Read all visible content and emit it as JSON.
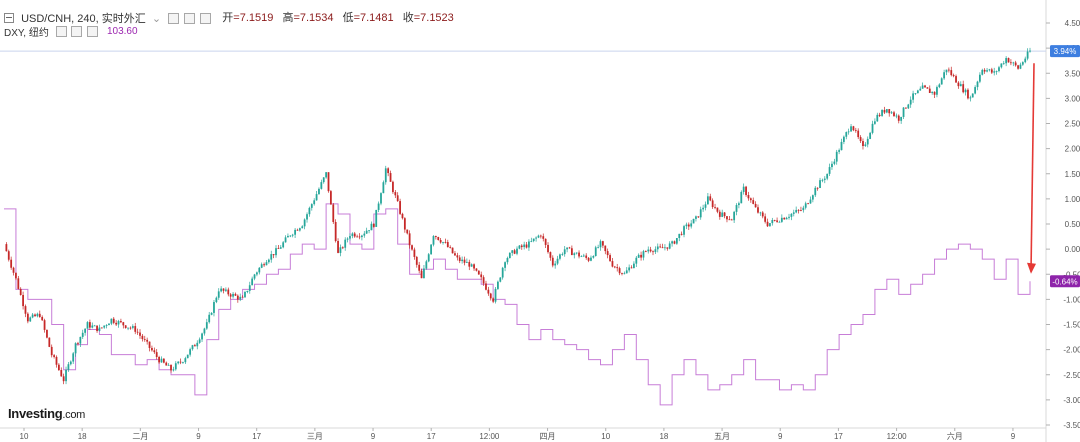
{
  "header": {
    "symbol_line": "USD/CNH, 240, 实时外汇",
    "ohlc": [
      {
        "label": "开",
        "value": "=7.1519"
      },
      {
        "label": "高",
        "value": "=7.1534"
      },
      {
        "label": "低",
        "value": "=7.1481"
      },
      {
        "label": "收",
        "value": "=7.1523"
      }
    ],
    "dxy_label": "DXY, 纽约",
    "dxy_value": "103.60"
  },
  "brand": {
    "name": "Investing",
    "suffix": ".com"
  },
  "colors": {
    "up": "#26a69a",
    "down": "#c62828",
    "dxy_line": "#c77dd7",
    "badge_usdcnh": "#3d7ee0",
    "badge_dxy": "#8e24aa",
    "arrow": "#e53935"
  },
  "chart_data": {
    "type": "line",
    "xlabel": "",
    "ylabel": "",
    "y_unit": "%",
    "ylim": [
      -3.5,
      4.5
    ],
    "yticks": [
      "4.50%",
      "4.00%",
      "3.50%",
      "3.00%",
      "2.50%",
      "2.00%",
      "1.50%",
      "1.00%",
      "0.50%",
      "0.00%",
      "-0.50%",
      "-1.00%",
      "-1.50%",
      "-2.00%",
      "-2.50%",
      "-3.00%",
      "-3.50%"
    ],
    "xticks": [
      "10",
      "18",
      "二月",
      "9",
      "17",
      "三月",
      "9",
      "17",
      "12:00",
      "四月",
      "10",
      "18",
      "五月",
      "9",
      "17",
      "12:00",
      "六月",
      "9"
    ],
    "grid": false,
    "last_values": {
      "usdcnh": "3.94%",
      "dxy": "-0.64%"
    },
    "series": [
      {
        "style": "candles",
        "points": [
          [
            0,
            0.1
          ],
          [
            1,
            -0.6
          ],
          [
            2,
            -1.4
          ],
          [
            3,
            -1.3
          ],
          [
            4,
            -2.1
          ],
          [
            5,
            -2.6
          ],
          [
            6,
            -1.9
          ],
          [
            7,
            -1.5
          ],
          [
            8,
            -1.6
          ],
          [
            9,
            -1.4
          ],
          [
            10,
            -1.5
          ],
          [
            11,
            -1.6
          ],
          [
            12,
            -1.9
          ],
          [
            13,
            -2.2
          ],
          [
            14,
            -2.4
          ],
          [
            15,
            -2.2
          ],
          [
            16,
            -1.9
          ],
          [
            17,
            -1.5
          ],
          [
            18,
            -0.8
          ],
          [
            19,
            -0.9
          ],
          [
            20,
            -1.0
          ],
          [
            21,
            -0.5
          ],
          [
            22,
            -0.2
          ],
          [
            23,
            0.0
          ],
          [
            24,
            0.3
          ],
          [
            25,
            0.5
          ],
          [
            26,
            1.0
          ],
          [
            27,
            1.5
          ],
          [
            28,
            -0.1
          ],
          [
            29,
            0.3
          ],
          [
            30,
            0.3
          ],
          [
            31,
            0.5
          ],
          [
            32,
            1.6
          ],
          [
            33,
            0.9
          ],
          [
            34,
            0.1
          ],
          [
            35,
            -0.6
          ],
          [
            36,
            0.3
          ],
          [
            37,
            0.1
          ],
          [
            38,
            -0.2
          ],
          [
            39,
            -0.3
          ],
          [
            40,
            -0.6
          ],
          [
            41,
            -1.0
          ],
          [
            42,
            -0.2
          ],
          [
            43,
            0.0
          ],
          [
            44,
            0.1
          ],
          [
            45,
            0.3
          ],
          [
            46,
            -0.3
          ],
          [
            47,
            0.0
          ],
          [
            48,
            -0.1
          ],
          [
            49,
            -0.2
          ],
          [
            50,
            0.1
          ],
          [
            51,
            -0.3
          ],
          [
            52,
            -0.5
          ],
          [
            53,
            -0.2
          ],
          [
            54,
            0.0
          ],
          [
            55,
            0.0
          ],
          [
            56,
            0.1
          ],
          [
            57,
            0.4
          ],
          [
            58,
            0.6
          ],
          [
            59,
            1.0
          ],
          [
            60,
            0.7
          ],
          [
            61,
            0.6
          ],
          [
            62,
            1.2
          ],
          [
            63,
            0.8
          ],
          [
            64,
            0.5
          ],
          [
            65,
            0.6
          ],
          [
            66,
            0.7
          ],
          [
            67,
            0.8
          ],
          [
            68,
            1.2
          ],
          [
            69,
            1.5
          ],
          [
            70,
            2.0
          ],
          [
            71,
            2.5
          ],
          [
            72,
            2.0
          ],
          [
            73,
            2.6
          ],
          [
            74,
            2.8
          ],
          [
            75,
            2.6
          ],
          [
            76,
            3.0
          ],
          [
            77,
            3.2
          ],
          [
            78,
            3.1
          ],
          [
            79,
            3.6
          ],
          [
            80,
            3.3
          ],
          [
            81,
            3.0
          ],
          [
            82,
            3.6
          ],
          [
            83,
            3.5
          ],
          [
            84,
            3.8
          ],
          [
            85,
            3.6
          ],
          [
            86,
            3.94
          ]
        ]
      },
      {
        "name": "DXY",
        "style": "step",
        "points": [
          [
            0,
            0.8
          ],
          [
            1,
            -0.8
          ],
          [
            2,
            -1.0
          ],
          [
            3,
            -1.0
          ],
          [
            4,
            -1.5
          ],
          [
            5,
            -2.4
          ],
          [
            6,
            -1.9
          ],
          [
            7,
            -1.6
          ],
          [
            8,
            -1.7
          ],
          [
            9,
            -2.1
          ],
          [
            10,
            -2.1
          ],
          [
            11,
            -2.3
          ],
          [
            12,
            -2.2
          ],
          [
            13,
            -2.4
          ],
          [
            14,
            -2.5
          ],
          [
            15,
            -2.5
          ],
          [
            16,
            -2.9
          ],
          [
            17,
            -1.8
          ],
          [
            18,
            -1.2
          ],
          [
            19,
            -1.0
          ],
          [
            20,
            -0.8
          ],
          [
            21,
            -0.7
          ],
          [
            22,
            -0.5
          ],
          [
            23,
            -0.4
          ],
          [
            24,
            -0.1
          ],
          [
            25,
            0.1
          ],
          [
            26,
            0.0
          ],
          [
            27,
            0.9
          ],
          [
            28,
            0.7
          ],
          [
            29,
            0.1
          ],
          [
            30,
            0.0
          ],
          [
            31,
            0.7
          ],
          [
            32,
            0.8
          ],
          [
            33,
            0.1
          ],
          [
            34,
            -0.5
          ],
          [
            35,
            -0.4
          ],
          [
            36,
            -0.2
          ],
          [
            37,
            -0.4
          ],
          [
            38,
            -0.6
          ],
          [
            39,
            -0.6
          ],
          [
            40,
            -0.7
          ],
          [
            41,
            -1.0
          ],
          [
            42,
            -1.1
          ],
          [
            43,
            -1.5
          ],
          [
            44,
            -1.8
          ],
          [
            45,
            -1.6
          ],
          [
            46,
            -1.8
          ],
          [
            47,
            -1.9
          ],
          [
            48,
            -2.0
          ],
          [
            49,
            -2.2
          ],
          [
            50,
            -2.3
          ],
          [
            51,
            -2.0
          ],
          [
            52,
            -1.7
          ],
          [
            53,
            -2.2
          ],
          [
            54,
            -2.7
          ],
          [
            55,
            -3.1
          ],
          [
            56,
            -2.5
          ],
          [
            57,
            -2.2
          ],
          [
            58,
            -2.5
          ],
          [
            59,
            -2.8
          ],
          [
            60,
            -2.7
          ],
          [
            61,
            -2.5
          ],
          [
            62,
            -2.2
          ],
          [
            63,
            -2.6
          ],
          [
            64,
            -2.6
          ],
          [
            65,
            -2.8
          ],
          [
            66,
            -2.7
          ],
          [
            67,
            -2.8
          ],
          [
            68,
            -2.5
          ],
          [
            69,
            -2.0
          ],
          [
            70,
            -1.7
          ],
          [
            71,
            -1.5
          ],
          [
            72,
            -1.3
          ],
          [
            73,
            -0.8
          ],
          [
            74,
            -0.6
          ],
          [
            75,
            -0.9
          ],
          [
            76,
            -0.7
          ],
          [
            77,
            -0.5
          ],
          [
            78,
            -0.2
          ],
          [
            79,
            0.0
          ],
          [
            80,
            0.1
          ],
          [
            81,
            0.0
          ],
          [
            82,
            -0.2
          ],
          [
            83,
            -0.6
          ],
          [
            84,
            -0.2
          ],
          [
            85,
            -0.9
          ],
          [
            86,
            -0.64
          ]
        ]
      }
    ]
  }
}
